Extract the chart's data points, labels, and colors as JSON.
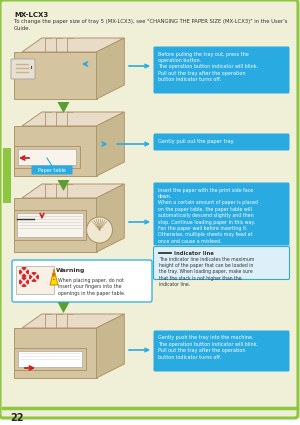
{
  "page_bg": "#f0f0d8",
  "border_color": "#8dc63f",
  "page_num": "22",
  "title": "MX-LCX3",
  "subtitle": "To change the paper size of tray 5 (MX-LCX3), see \"CHANGING THE PAPER SIZE (MX-LCX3)\" in the User's\nGuide.",
  "callout_bg": "#29abe2",
  "callout_text_color": "#ffffff",
  "arrow_color": "#5a9e2f",
  "callout1": "Before pulling the tray out, press the\noperation button.\nThe operation button indicator will blink.\nPull out the tray after the operation\nbutton indicator turns off.",
  "callout2": "Gently pull out the paper tray.",
  "callout3": "Insert the paper with the print side face\ndown.\nWhen a certain amount of paper is placed\non the paper table, the paper table will\nautomatically descend slightly and then\nstop. Continue loading paper in this way.\nFan the paper well before inserting it.\nOtherwise, multiple sheets may feed at\nonce and cause a misfeed.",
  "callout4_title": "Indicator line",
  "callout4_body": "The indicator line indicates the maximum\nheight of the paper that can be loaded in\nthe tray. When loading paper, make sure\nthat the stack is not higher than the\nindicator line.",
  "warning_title": "Warning",
  "warning_body": "When placing paper, do not\ninsert your fingers into the\nopenings in the paper table.",
  "callout5": "Gently push the tray into the machine.\nThe operation button indicator will blink.\nPull out the tray after the operation\nbutton indicator turns off.",
  "paper_table_label": "Paper table",
  "tray_color": "#d4c4a0",
  "tray_edge": "#b0956a",
  "paper_color": "#f8f4ec",
  "machine_top": "#e8dcc8",
  "machine_shadow": "#c8b890"
}
